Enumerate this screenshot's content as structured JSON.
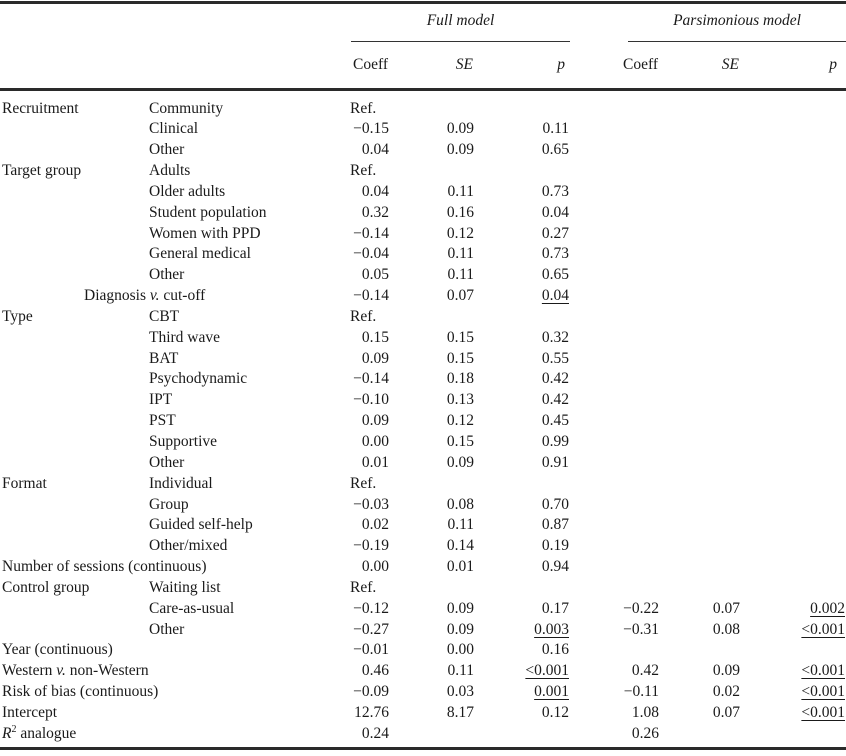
{
  "table": {
    "groups": {
      "full": "Full model",
      "parsimonious": "Parsimonious model"
    },
    "columns": {
      "coeff": "Coeff",
      "se": "SE",
      "p": "p"
    },
    "r2_label": {
      "pre": "R",
      "sup": "2",
      "post": " analogue"
    },
    "colors": {
      "text": "#1a1a1a",
      "rule": "#2a2a2a",
      "background": "#ffffff"
    },
    "rows": [
      {
        "cat": "Recruitment",
        "sub": "Community",
        "full": {
          "coeff": "Ref.",
          "se": "",
          "p": ""
        }
      },
      {
        "sub": "Clinical",
        "full": {
          "coeff": "−0.15",
          "se": "0.09",
          "p": "0.11"
        }
      },
      {
        "sub": "Other",
        "full": {
          "coeff": "0.04",
          "se": "0.09",
          "p": "0.65"
        }
      },
      {
        "cat": "Target group",
        "sub": "Adults",
        "full": {
          "coeff": "Ref.",
          "se": "",
          "p": ""
        }
      },
      {
        "sub": "Older adults",
        "full": {
          "coeff": "0.04",
          "se": "0.11",
          "p": "0.73"
        }
      },
      {
        "sub": "Student population",
        "full": {
          "coeff": "0.32",
          "se": "0.16",
          "p": "0.04"
        }
      },
      {
        "sub": "Women with PPD",
        "full": {
          "coeff": "−0.14",
          "se": "0.12",
          "p": "0.27"
        }
      },
      {
        "sub": "General medical",
        "full": {
          "coeff": "−0.04",
          "se": "0.11",
          "p": "0.73"
        }
      },
      {
        "sub": "Other",
        "full": {
          "coeff": "0.05",
          "se": "0.11",
          "p": "0.65"
        }
      },
      {
        "label": "Diagnosis v. cut-off",
        "indent": 84,
        "full": {
          "coeff": "−0.14",
          "se": "0.07",
          "p": "0.04"
        },
        "full_p_underline": true
      },
      {
        "cat": "Type",
        "sub": "CBT",
        "full": {
          "coeff": "Ref.",
          "se": "",
          "p": ""
        }
      },
      {
        "sub": "Third wave",
        "full": {
          "coeff": "0.15",
          "se": "0.15",
          "p": "0.32"
        }
      },
      {
        "sub": "BAT",
        "full": {
          "coeff": "0.09",
          "se": "0.15",
          "p": "0.55"
        }
      },
      {
        "sub": "Psychodynamic",
        "full": {
          "coeff": "−0.14",
          "se": "0.18",
          "p": "0.42"
        }
      },
      {
        "sub": "IPT",
        "full": {
          "coeff": "−0.10",
          "se": "0.13",
          "p": "0.42"
        }
      },
      {
        "sub": "PST",
        "full": {
          "coeff": "0.09",
          "se": "0.12",
          "p": "0.45"
        }
      },
      {
        "sub": "Supportive",
        "full": {
          "coeff": "0.00",
          "se": "0.15",
          "p": "0.99"
        }
      },
      {
        "sub": "Other",
        "full": {
          "coeff": "0.01",
          "se": "0.09",
          "p": "0.91"
        }
      },
      {
        "cat": "Format",
        "sub": "Individual",
        "full": {
          "coeff": "Ref.",
          "se": "",
          "p": ""
        }
      },
      {
        "sub": "Group",
        "full": {
          "coeff": "−0.03",
          "se": "0.08",
          "p": "0.70"
        }
      },
      {
        "sub": "Guided self-help",
        "full": {
          "coeff": "0.02",
          "se": "0.11",
          "p": "0.87"
        }
      },
      {
        "sub": "Other/mixed",
        "full": {
          "coeff": "−0.19",
          "se": "0.14",
          "p": "0.19"
        }
      },
      {
        "label": "Number of sessions (continuous)",
        "full": {
          "coeff": "0.00",
          "se": "0.01",
          "p": "0.94"
        }
      },
      {
        "cat": "Control group",
        "sub": "Waiting list",
        "full": {
          "coeff": "Ref.",
          "se": "",
          "p": ""
        }
      },
      {
        "sub": "Care-as-usual",
        "full": {
          "coeff": "−0.12",
          "se": "0.09",
          "p": "0.17"
        },
        "pars": {
          "coeff": "−0.22",
          "se": "0.07",
          "p": "0.002"
        },
        "pars_p_underline": true
      },
      {
        "sub": "Other",
        "full": {
          "coeff": "−0.27",
          "se": "0.09",
          "p": "0.003"
        },
        "full_p_underline": true,
        "pars": {
          "coeff": "−0.31",
          "se": "0.08",
          "p": "<0.001"
        },
        "pars_p_underline": true
      },
      {
        "label": "Year (continuous)",
        "full": {
          "coeff": "−0.01",
          "se": "0.00",
          "p": "0.16"
        }
      },
      {
        "label": "Western v. non-Western",
        "full": {
          "coeff": "0.46",
          "se": "0.11",
          "p": "<0.001"
        },
        "full_p_underline": true,
        "pars": {
          "coeff": "0.42",
          "se": "0.09",
          "p": "<0.001"
        },
        "pars_p_underline": true
      },
      {
        "label": "Risk of bias (continuous)",
        "full": {
          "coeff": "−0.09",
          "se": "0.03",
          "p": "0.001"
        },
        "full_p_underline": true,
        "pars": {
          "coeff": "−0.11",
          "se": "0.02",
          "p": "<0.001"
        },
        "pars_p_underline": true
      },
      {
        "label": "Intercept",
        "full": {
          "coeff": "12.76",
          "se": "8.17",
          "p": "0.12"
        },
        "pars": {
          "coeff": "1.08",
          "se": "0.07",
          "p": "<0.001"
        },
        "pars_p_underline": true
      },
      {
        "label": "R2 analogue",
        "r2": true,
        "full": {
          "coeff": "0.24",
          "se": "",
          "p": ""
        },
        "pars": {
          "coeff": "0.26",
          "se": "",
          "p": ""
        }
      }
    ]
  }
}
